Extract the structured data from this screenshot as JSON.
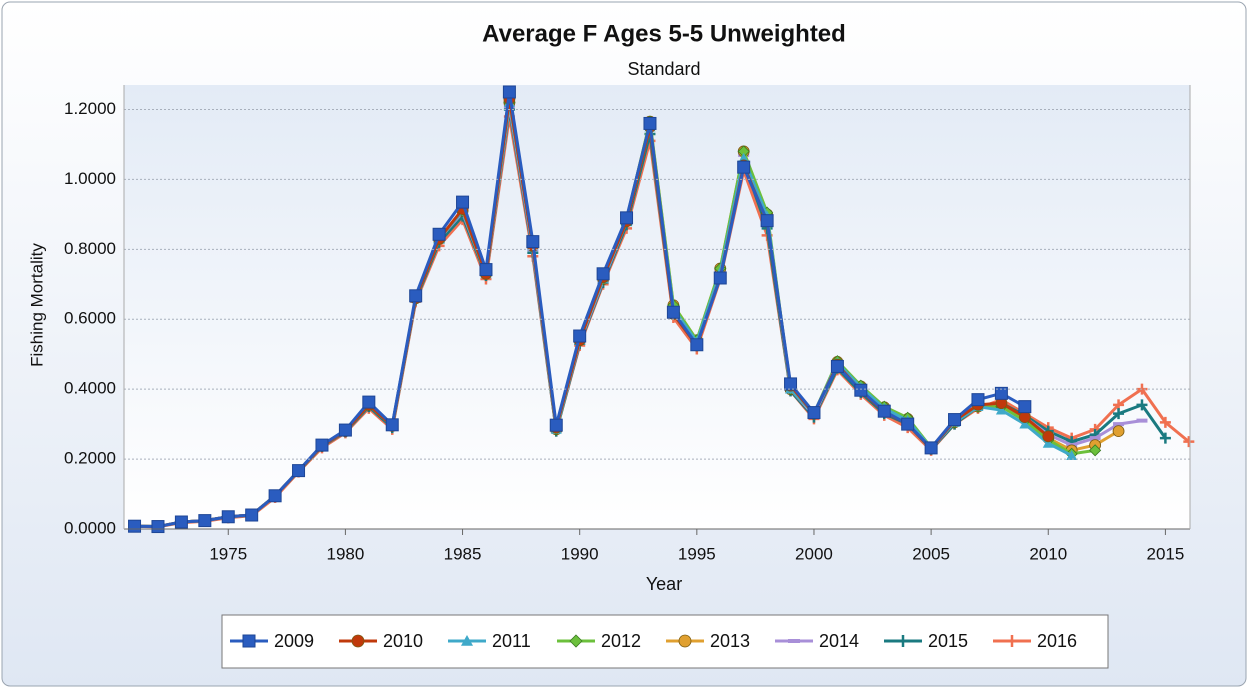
{
  "chart_data": {
    "type": "line",
    "title": "Average F Ages 5-5 Unweighted",
    "subtitle": "Standard",
    "x_label": "Year",
    "y_label": "Fishing Mortality",
    "x": [
      1971,
      1972,
      1973,
      1974,
      1975,
      1976,
      1977,
      1978,
      1979,
      1980,
      1981,
      1982,
      1983,
      1984,
      1985,
      1986,
      1987,
      1988,
      1989,
      1990,
      1991,
      1992,
      1993,
      1994,
      1995,
      1996,
      1997,
      1998,
      1999,
      2000,
      2001,
      2002,
      2003,
      2004,
      2005,
      2006,
      2007,
      2008,
      2009,
      2010,
      2011,
      2012,
      2013,
      2014,
      2015,
      2016
    ],
    "xlim": [
      1970.55,
      2016.05
    ],
    "xticks": [
      1975,
      1980,
      1985,
      1990,
      1995,
      2000,
      2005,
      2010,
      2015
    ],
    "ylim": [
      0,
      1.27
    ],
    "yticks": [
      {
        "value": 0,
        "label": "0.0000"
      },
      {
        "value": 0.2,
        "label": "0.2000"
      },
      {
        "value": 0.4,
        "label": "0.4000"
      },
      {
        "value": 0.6,
        "label": "0.6000"
      },
      {
        "value": 0.8,
        "label": "0.8000"
      },
      {
        "value": 1.0,
        "label": "1.0000"
      },
      {
        "value": 1.2,
        "label": "1.2000"
      }
    ],
    "grid": true,
    "legend": "bottom",
    "series": [
      {
        "name": "2009",
        "color": "#2a5cbf",
        "marker": "square",
        "values": [
          0.008,
          0.007,
          0.02,
          0.024,
          0.035,
          0.04,
          0.095,
          0.167,
          0.24,
          0.283,
          0.363,
          0.298,
          0.667,
          0.843,
          0.935,
          0.742,
          1.25,
          0.822,
          0.297,
          0.552,
          0.73,
          0.89,
          1.16,
          0.62,
          0.527,
          0.718,
          1.035,
          0.882,
          0.415,
          0.333,
          0.465,
          0.397,
          0.337,
          0.3,
          0.232,
          0.313,
          0.37,
          0.388,
          0.35,
          null,
          null,
          null,
          null,
          null,
          null,
          null
        ]
      },
      {
        "name": "2010",
        "color": "#c0390b",
        "marker": "circle",
        "values": [
          0.008,
          0.007,
          0.02,
          0.024,
          0.035,
          0.04,
          0.095,
          0.166,
          0.238,
          0.28,
          0.355,
          0.295,
          0.66,
          0.83,
          0.915,
          0.73,
          1.23,
          0.81,
          0.29,
          0.54,
          0.72,
          0.88,
          1.15,
          0.615,
          0.525,
          0.72,
          1.04,
          0.88,
          0.41,
          0.33,
          0.47,
          0.395,
          0.335,
          0.3,
          0.23,
          0.31,
          0.355,
          0.36,
          0.32,
          0.265,
          null,
          null,
          null,
          null,
          null,
          null
        ]
      },
      {
        "name": "2011",
        "color": "#3fa9c9",
        "marker": "triangle",
        "values": [
          0.008,
          0.007,
          0.02,
          0.024,
          0.035,
          0.04,
          0.095,
          0.166,
          0.238,
          0.28,
          0.355,
          0.295,
          0.66,
          0.83,
          0.91,
          0.73,
          1.22,
          0.81,
          0.285,
          0.54,
          0.715,
          0.88,
          1.15,
          0.63,
          0.535,
          0.735,
          1.06,
          0.895,
          0.4,
          0.33,
          0.475,
          0.405,
          0.345,
          0.31,
          0.232,
          0.305,
          0.35,
          0.34,
          0.3,
          0.245,
          0.21,
          null,
          null,
          null,
          null,
          null
        ]
      },
      {
        "name": "2012",
        "color": "#6cc03c",
        "marker": "diamond",
        "values": [
          0.008,
          0.007,
          0.02,
          0.024,
          0.035,
          0.04,
          0.095,
          0.166,
          0.238,
          0.28,
          0.355,
          0.295,
          0.66,
          0.83,
          0.91,
          0.73,
          1.22,
          0.81,
          0.285,
          0.54,
          0.715,
          0.885,
          1.165,
          0.64,
          0.54,
          0.745,
          1.08,
          0.905,
          0.4,
          0.33,
          0.48,
          0.41,
          0.35,
          0.318,
          0.233,
          0.305,
          0.35,
          0.35,
          0.31,
          0.255,
          0.215,
          0.225,
          null,
          null,
          null,
          null
        ]
      },
      {
        "name": "2013",
        "color": "#e0a030",
        "marker": "circle",
        "values": [
          0.008,
          0.007,
          0.02,
          0.024,
          0.035,
          0.04,
          0.095,
          0.166,
          0.238,
          0.28,
          0.355,
          0.295,
          0.66,
          0.83,
          0.91,
          0.73,
          1.22,
          0.81,
          0.285,
          0.54,
          0.715,
          0.885,
          1.165,
          0.64,
          0.54,
          0.745,
          1.08,
          0.9,
          0.4,
          0.33,
          0.478,
          0.408,
          0.348,
          0.315,
          0.233,
          0.305,
          0.35,
          0.352,
          0.315,
          0.26,
          0.225,
          0.24,
          0.28,
          null,
          null,
          null
        ]
      },
      {
        "name": "2014",
        "color": "#a88fd8",
        "marker": "dash",
        "values": [
          0.008,
          0.007,
          0.02,
          0.024,
          0.035,
          0.04,
          0.095,
          0.166,
          0.238,
          0.28,
          0.355,
          0.295,
          0.66,
          0.83,
          0.905,
          0.73,
          1.21,
          0.8,
          0.285,
          0.535,
          0.71,
          0.88,
          1.155,
          0.63,
          0.535,
          0.74,
          1.07,
          0.89,
          0.4,
          0.325,
          0.47,
          0.4,
          0.34,
          0.31,
          0.23,
          0.305,
          0.35,
          0.355,
          0.32,
          0.27,
          0.24,
          0.26,
          0.3,
          0.31,
          null,
          null
        ]
      },
      {
        "name": "2015",
        "color": "#1a7a80",
        "marker": "plus",
        "values": [
          0.008,
          0.007,
          0.02,
          0.024,
          0.035,
          0.04,
          0.095,
          0.165,
          0.236,
          0.278,
          0.35,
          0.29,
          0.655,
          0.82,
          0.895,
          0.725,
          1.2,
          0.79,
          0.28,
          0.53,
          0.705,
          0.87,
          1.13,
          0.615,
          0.525,
          0.725,
          1.05,
          0.86,
          0.395,
          0.32,
          0.46,
          0.39,
          0.33,
          0.3,
          0.228,
          0.3,
          0.35,
          0.36,
          0.325,
          0.28,
          0.25,
          0.27,
          0.33,
          0.355,
          0.26,
          null
        ]
      },
      {
        "name": "2016",
        "color": "#f07050",
        "marker": "plus",
        "values": [
          0.008,
          0.006,
          0.018,
          0.022,
          0.032,
          0.038,
          0.09,
          0.163,
          0.232,
          0.275,
          0.345,
          0.285,
          0.65,
          0.81,
          0.885,
          0.715,
          1.18,
          0.78,
          0.28,
          0.525,
          0.7,
          0.86,
          1.11,
          0.605,
          0.515,
          0.715,
          1.025,
          0.84,
          0.395,
          0.315,
          0.455,
          0.385,
          0.325,
          0.29,
          0.225,
          0.3,
          0.345,
          0.37,
          0.33,
          0.29,
          0.26,
          0.285,
          0.355,
          0.4,
          0.305,
          0.25
        ]
      }
    ]
  }
}
